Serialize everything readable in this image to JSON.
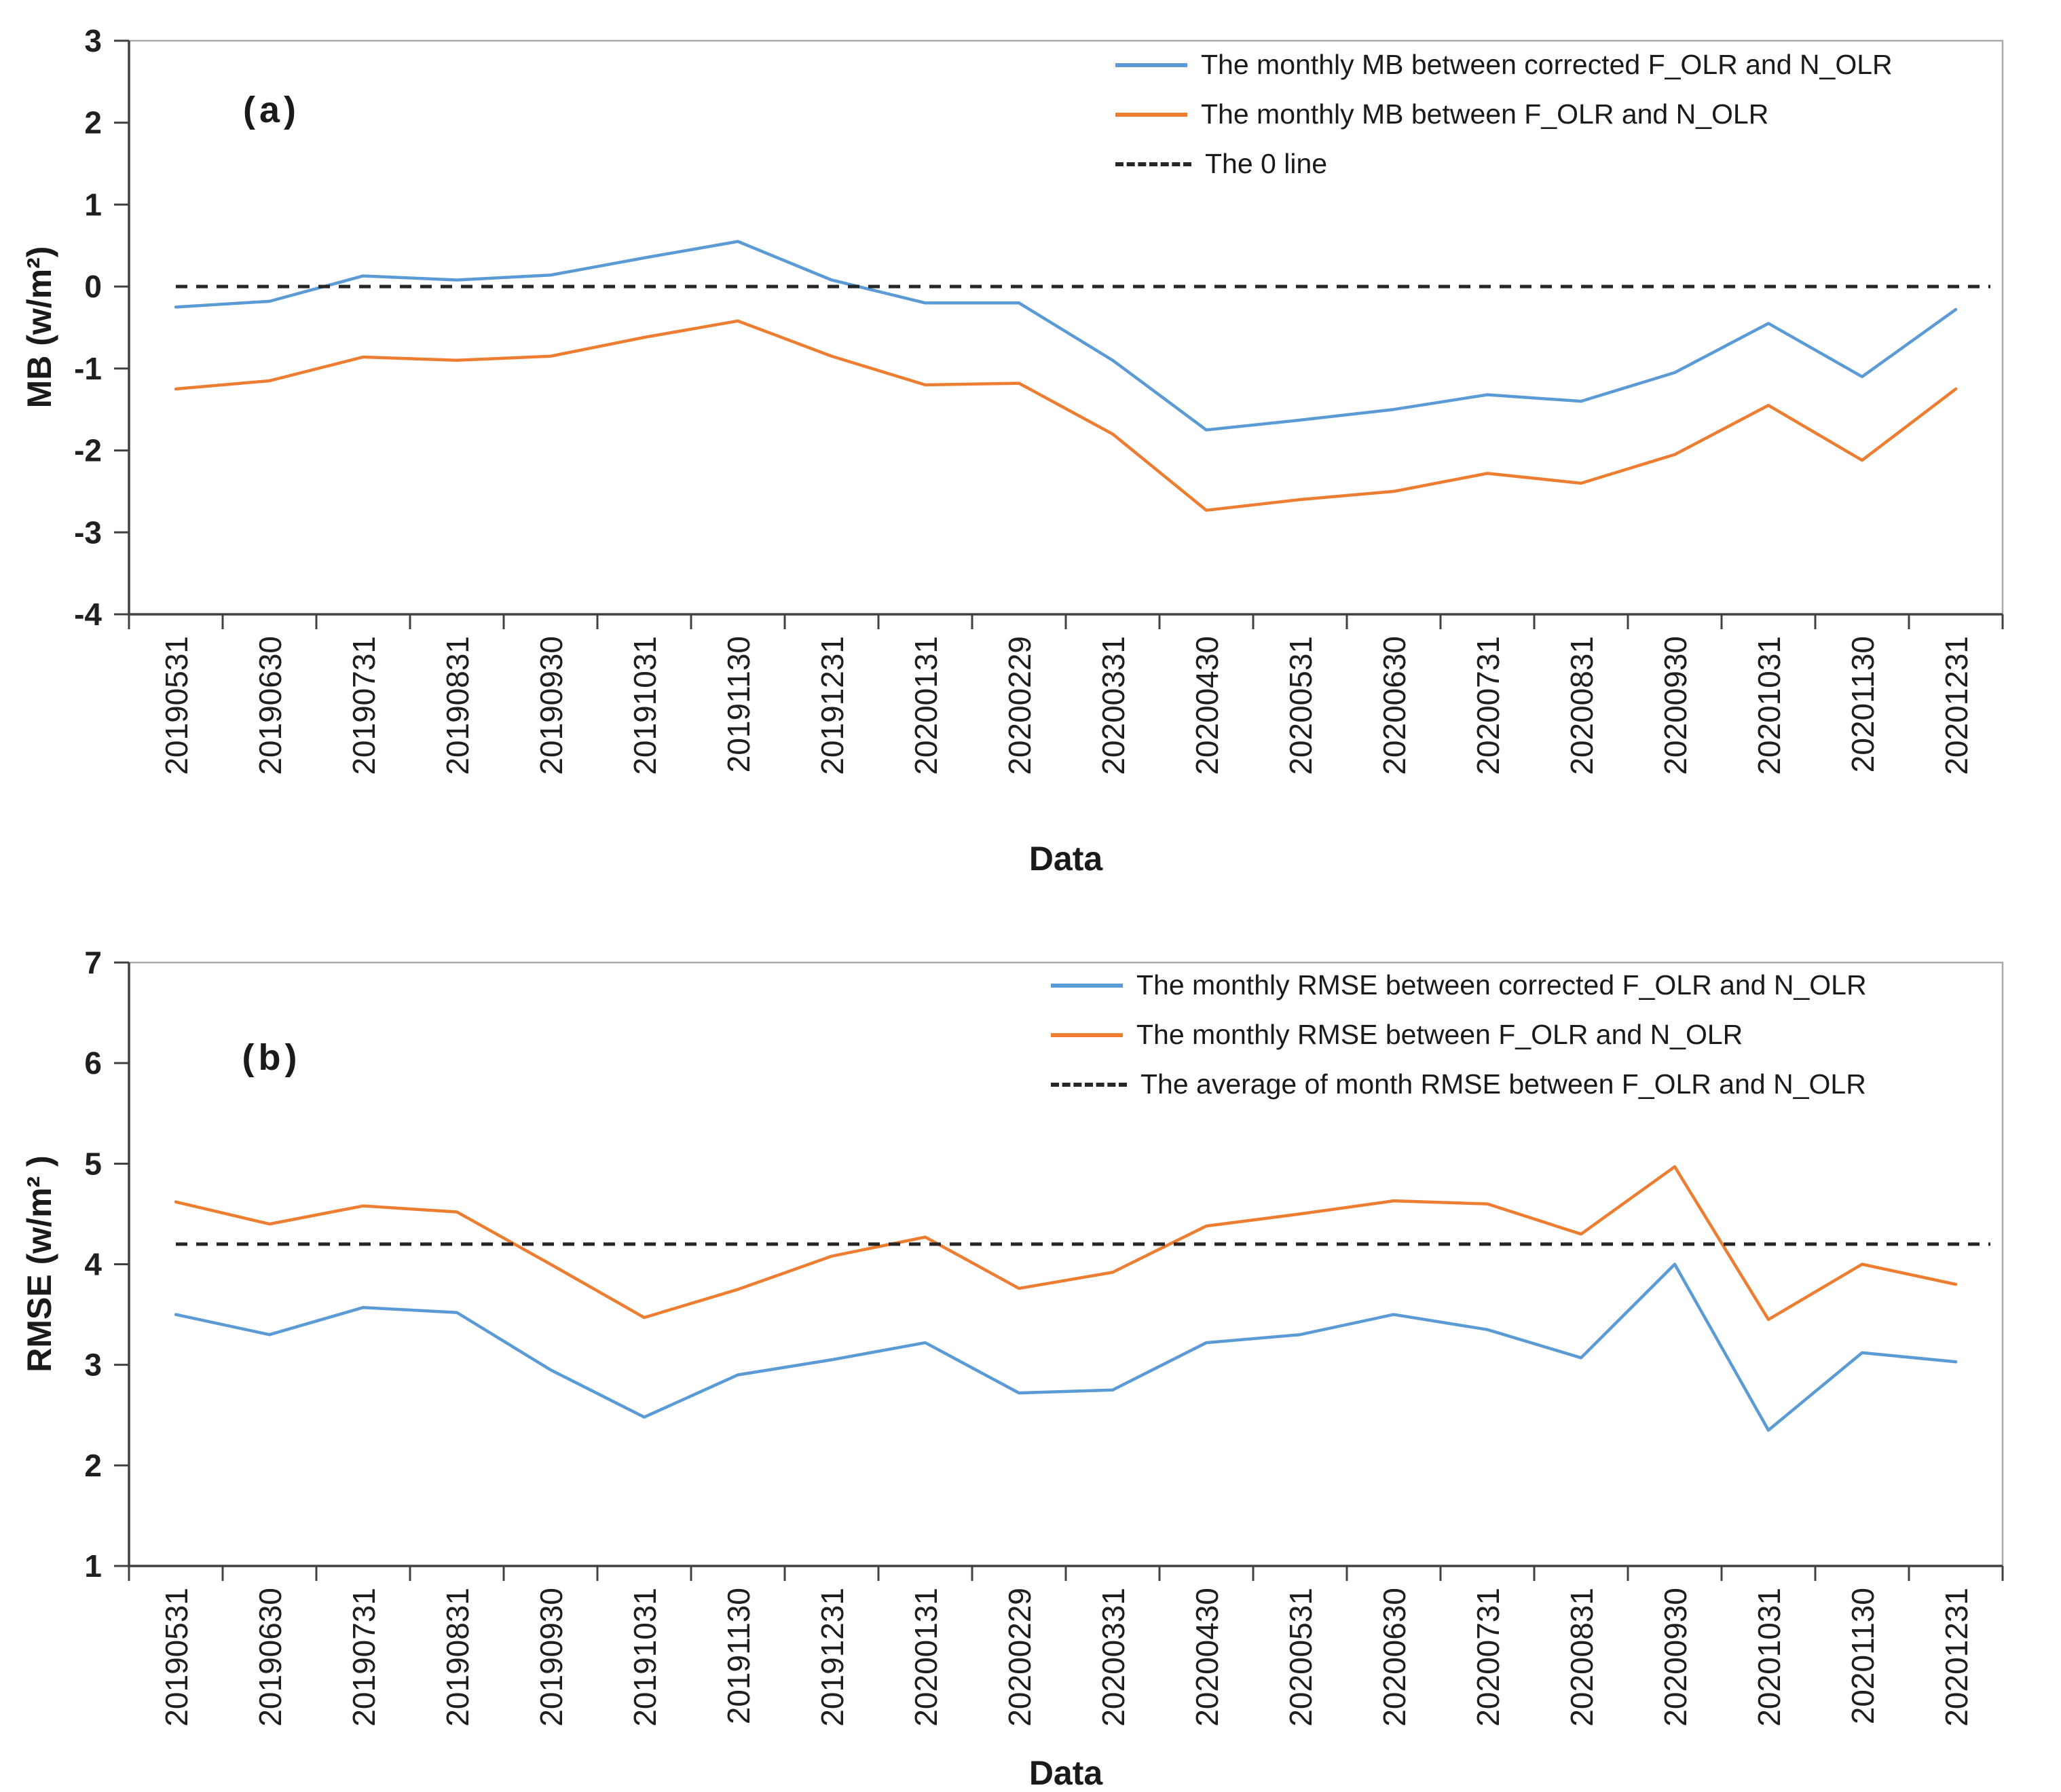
{
  "page": {
    "background": "#ffffff"
  },
  "chart_data": [
    {
      "type": "line",
      "panel_label": "(a)",
      "xlabel": "Data",
      "ylabel": "MB (w/m²)",
      "ylim": [
        -4,
        3
      ],
      "yticks": [
        3,
        2,
        1,
        0,
        -1,
        -2,
        -3,
        -4
      ],
      "grid": false,
      "legend_position": "top-right-inside",
      "x": [
        "20190531",
        "20190630",
        "20190731",
        "20190831",
        "20190930",
        "20191031",
        "20191130",
        "20191231",
        "20200131",
        "20200229",
        "20200331",
        "20200430",
        "20200531",
        "20200630",
        "20200731",
        "20200831",
        "20200930",
        "20201031",
        "20201130",
        "20201231"
      ],
      "series": [
        {
          "name": "The monthly MB between corrected F_OLR and N_OLR",
          "color": "#5B9BD5",
          "style": "solid",
          "values": [
            -0.25,
            -0.18,
            0.13,
            0.08,
            0.14,
            0.35,
            0.55,
            0.08,
            -0.2,
            -0.2,
            -0.9,
            -1.75,
            -1.63,
            -1.5,
            -1.32,
            -1.4,
            -1.05,
            -0.45,
            -1.1,
            -0.28
          ]
        },
        {
          "name": "The monthly MB between F_OLR and N_OLR",
          "color": "#ED7D31",
          "style": "solid",
          "values": [
            -1.25,
            -1.15,
            -0.86,
            -0.9,
            -0.85,
            -0.62,
            -0.42,
            -0.85,
            -1.2,
            -1.18,
            -1.8,
            -2.73,
            -2.6,
            -2.5,
            -2.28,
            -2.4,
            -2.05,
            -1.45,
            -2.12,
            -1.25
          ]
        },
        {
          "name": "The 0 line",
          "color": "#262626",
          "style": "dashed",
          "constant_value": 0
        }
      ]
    },
    {
      "type": "line",
      "panel_label": "(b)",
      "xlabel": "Data",
      "ylabel": "RMSE (w/m² )",
      "ylim": [
        1,
        7
      ],
      "yticks": [
        7,
        6,
        5,
        4,
        3,
        2,
        1
      ],
      "grid": false,
      "legend_position": "top-right-inside",
      "x": [
        "20190531",
        "20190630",
        "20190731",
        "20190831",
        "20190930",
        "20191031",
        "20191130",
        "20191231",
        "20200131",
        "20200229",
        "20200331",
        "20200430",
        "20200531",
        "20200630",
        "20200731",
        "20200831",
        "20200930",
        "20201031",
        "20201130",
        "20201231"
      ],
      "series": [
        {
          "name": "The monthly RMSE between corrected F_OLR and N_OLR",
          "color": "#5B9BD5",
          "style": "solid",
          "values": [
            3.5,
            3.3,
            3.57,
            3.52,
            2.95,
            2.48,
            2.9,
            3.05,
            3.22,
            2.72,
            2.75,
            3.22,
            3.3,
            3.5,
            3.35,
            3.07,
            4.0,
            2.35,
            3.12,
            3.03
          ]
        },
        {
          "name": "The monthly RMSE between F_OLR and N_OLR",
          "color": "#ED7D31",
          "style": "solid",
          "values": [
            4.62,
            4.4,
            4.58,
            4.52,
            4.0,
            3.47,
            3.75,
            4.08,
            4.27,
            3.76,
            3.92,
            4.38,
            4.5,
            4.63,
            4.6,
            4.3,
            4.97,
            3.45,
            4.0,
            3.8
          ]
        },
        {
          "name": "The average of month RMSE between F_OLR and N_OLR",
          "color": "#262626",
          "style": "dashed",
          "constant_value": 4.2
        }
      ]
    }
  ]
}
